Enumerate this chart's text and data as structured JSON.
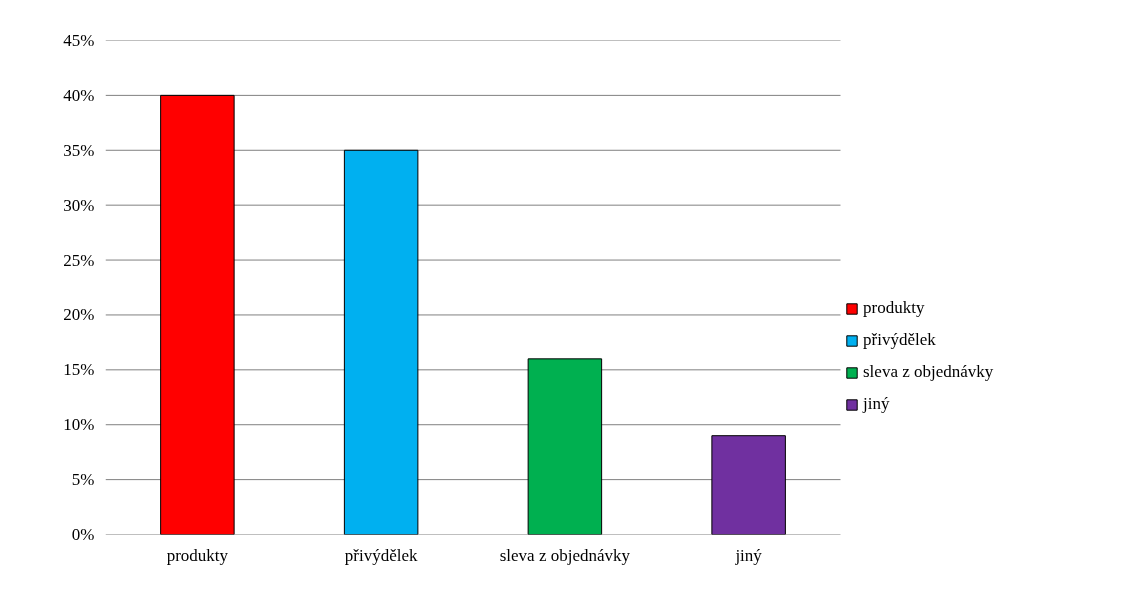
{
  "chart_data": {
    "type": "bar",
    "categories": [
      "produkty",
      "přivýdělek",
      "sleva z objednávky",
      "jiný"
    ],
    "series": [
      {
        "name": "produkty",
        "color": "#ff0000",
        "values": [
          40,
          null,
          null,
          null
        ]
      },
      {
        "name": "přivýdělek",
        "color": "#00b0f0",
        "values": [
          null,
          35,
          null,
          null
        ]
      },
      {
        "name": "sleva z objednávky",
        "color": "#00b050",
        "values": [
          null,
          null,
          16,
          null
        ]
      },
      {
        "name": "jiný",
        "color": "#7030a0",
        "values": [
          null,
          null,
          null,
          9
        ]
      }
    ],
    "ylim": [
      0,
      45
    ],
    "yticks": [
      {
        "value": 0,
        "label": "0%"
      },
      {
        "value": 5,
        "label": "5%"
      },
      {
        "value": 10,
        "label": "10%"
      },
      {
        "value": 15,
        "label": "15%"
      },
      {
        "value": 20,
        "label": "20%"
      },
      {
        "value": 25,
        "label": "25%"
      },
      {
        "value": 30,
        "label": "30%"
      },
      {
        "value": 35,
        "label": "35%"
      },
      {
        "value": 40,
        "label": "40%"
      },
      {
        "value": 45,
        "label": "45%"
      }
    ],
    "grid": "y",
    "legend": "right"
  }
}
